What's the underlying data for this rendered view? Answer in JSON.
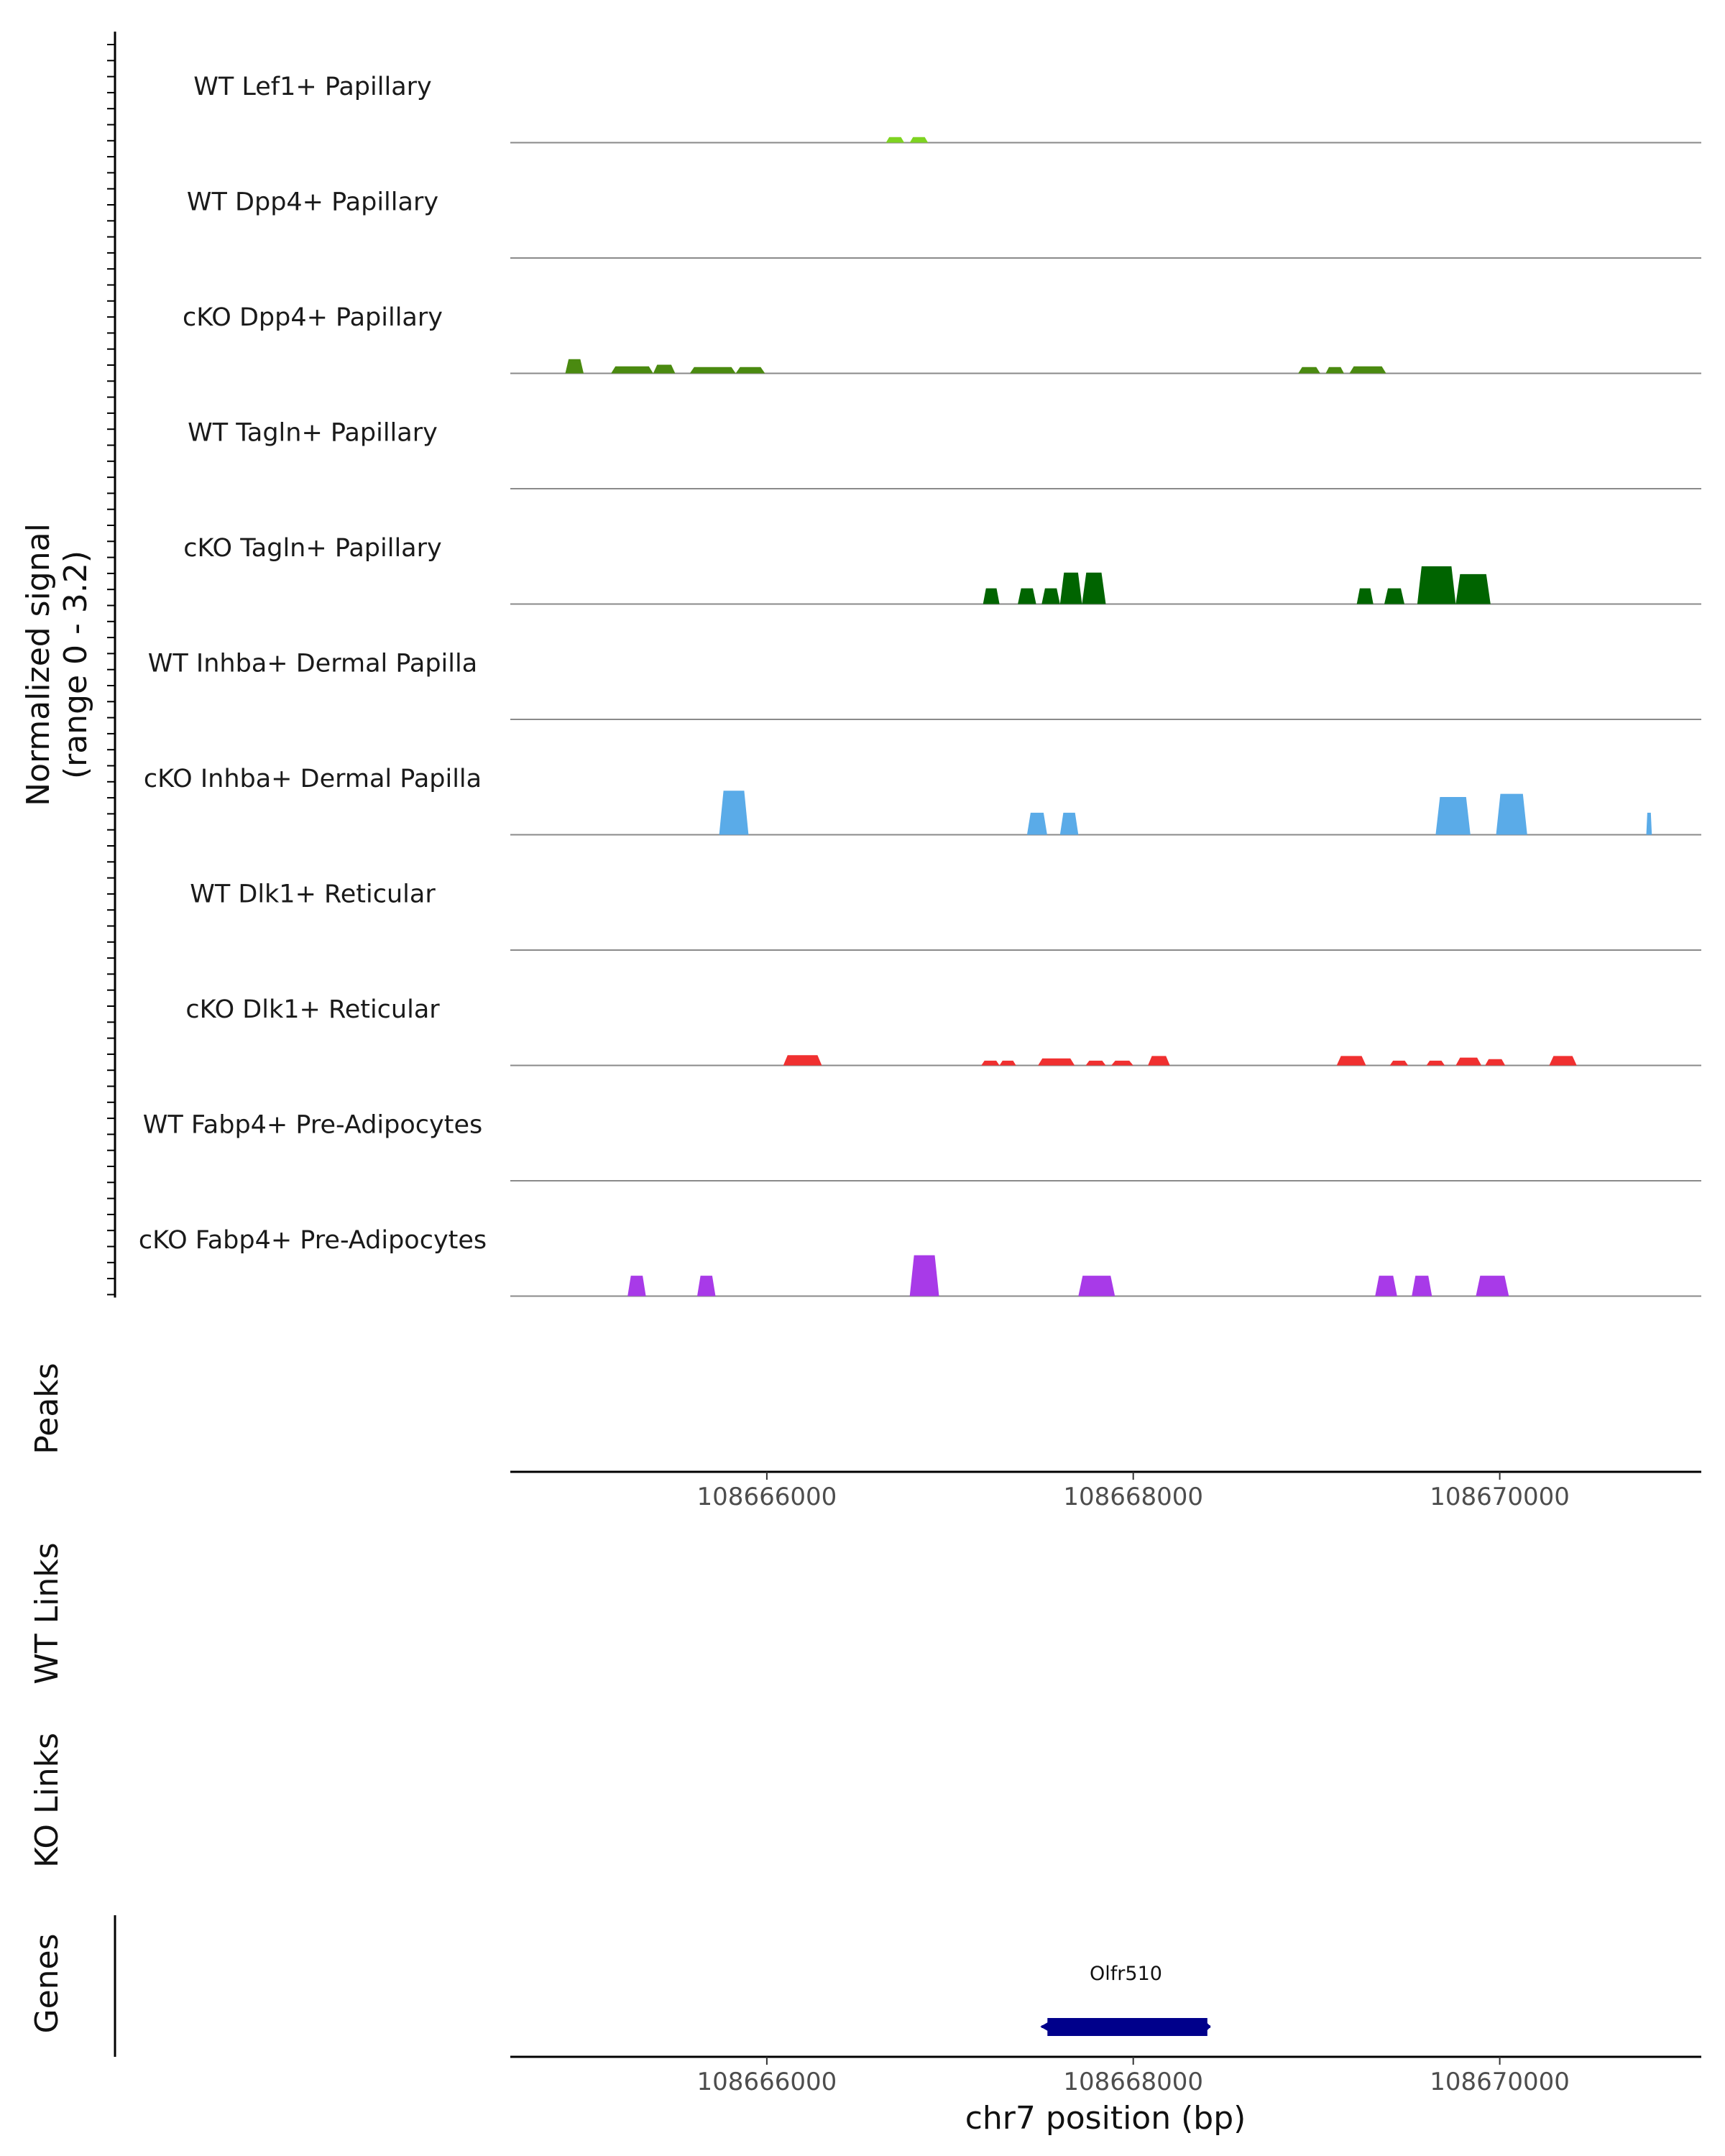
{
  "chart_data": {
    "type": "area",
    "title": "",
    "region": {
      "chromosome": "chr7",
      "start": 108664600,
      "end": 108671100
    },
    "signal_axis_label": [
      "Normalized signal",
      "(range 0 - 3.2)"
    ],
    "signal_range": [
      0,
      3.2
    ],
    "peaks_label": "Peaks",
    "wt_links_label": "WT Links",
    "ko_links_label": "KO Links",
    "genes_label": "Genes",
    "x_ticks": [
      108666000,
      108668000,
      108670000
    ],
    "x_tick_labels": [
      "108666000",
      "108668000",
      "108670000"
    ],
    "xlabel": "chr7 position (bp)",
    "tracks": [
      {
        "name": "WT Lef1+ Papillary",
        "color": "#7ed321",
        "peaks": [
          [
            108666650,
            108666750,
            0.35
          ],
          [
            108666780,
            108666880,
            0.35
          ]
        ]
      },
      {
        "name": "WT Dpp4+ Papillary",
        "color": "#5a8a1a",
        "peaks": []
      },
      {
        "name": "cKO Dpp4+ Papillary",
        "color": "#4a8a10",
        "peaks": [
          [
            108664900,
            108665000,
            0.9
          ],
          [
            108665150,
            108665380,
            0.45
          ],
          [
            108665380,
            108665500,
            0.55
          ],
          [
            108665580,
            108665830,
            0.4
          ],
          [
            108665830,
            108665990,
            0.4
          ],
          [
            108668900,
            108669020,
            0.4
          ],
          [
            108669050,
            108669150,
            0.4
          ],
          [
            108669180,
            108669380,
            0.45
          ]
        ]
      },
      {
        "name": "WT Tagln+ Papillary",
        "color": "#006400",
        "peaks": []
      },
      {
        "name": "cKO Tagln+ Papillary",
        "color": "#006400",
        "peaks": [
          [
            108667180,
            108667270,
            1.0
          ],
          [
            108667370,
            108667470,
            1.0
          ],
          [
            108667500,
            108667600,
            1.0
          ],
          [
            108667600,
            108667720,
            2.0
          ],
          [
            108667720,
            108667850,
            2.0
          ],
          [
            108669220,
            108669310,
            1.0
          ],
          [
            108669370,
            108669480,
            1.0
          ],
          [
            108669550,
            108669760,
            2.4
          ],
          [
            108669760,
            108669950,
            1.9
          ]
        ]
      },
      {
        "name": "WT Inhba+ Dermal Papilla",
        "color": "#4aa3e8",
        "peaks": []
      },
      {
        "name": "cKO Inhba+ Dermal Papilla",
        "color": "#5aabe8",
        "peaks": [
          [
            108665740,
            108665900,
            2.8
          ],
          [
            108667420,
            108667530,
            1.4
          ],
          [
            108667600,
            108667700,
            1.4
          ],
          [
            108669650,
            108669840,
            2.4
          ],
          [
            108669980,
            108670150,
            2.6
          ],
          [
            108670800,
            108670830,
            1.4
          ]
        ]
      },
      {
        "name": "WT Dlk1+ Reticular",
        "color": "#e83030",
        "peaks": []
      },
      {
        "name": "cKO Dlk1+ Reticular",
        "color": "#f03030",
        "peaks": [
          [
            108666090,
            108666300,
            0.65
          ],
          [
            108667170,
            108667270,
            0.3
          ],
          [
            108667270,
            108667360,
            0.3
          ],
          [
            108667480,
            108667680,
            0.45
          ],
          [
            108667740,
            108667850,
            0.3
          ],
          [
            108667880,
            108668000,
            0.3
          ],
          [
            108668080,
            108668200,
            0.6
          ],
          [
            108669110,
            108669270,
            0.6
          ],
          [
            108669400,
            108669500,
            0.3
          ],
          [
            108669600,
            108669700,
            0.3
          ],
          [
            108669760,
            108669900,
            0.5
          ],
          [
            108669920,
            108670030,
            0.4
          ],
          [
            108670270,
            108670420,
            0.6
          ]
        ]
      },
      {
        "name": "WT Fabp4+ Pre-Adipocytes",
        "color": "#a83ae8",
        "peaks": []
      },
      {
        "name": "cKO Fabp4+ Pre-Adipocytes",
        "color": "#a83ae8",
        "peaks": [
          [
            108665240,
            108665340,
            1.3
          ],
          [
            108665620,
            108665720,
            1.3
          ],
          [
            108666780,
            108666940,
            2.6
          ],
          [
            108667700,
            108667900,
            1.3
          ],
          [
            108669320,
            108669440,
            1.3
          ],
          [
            108669520,
            108669630,
            1.3
          ],
          [
            108669870,
            108670050,
            1.3
          ]
        ]
      }
    ],
    "gene": {
      "name": "Olfr510",
      "start": 108667500,
      "end": 108668420,
      "strand": "-",
      "color": "#00008b"
    }
  }
}
